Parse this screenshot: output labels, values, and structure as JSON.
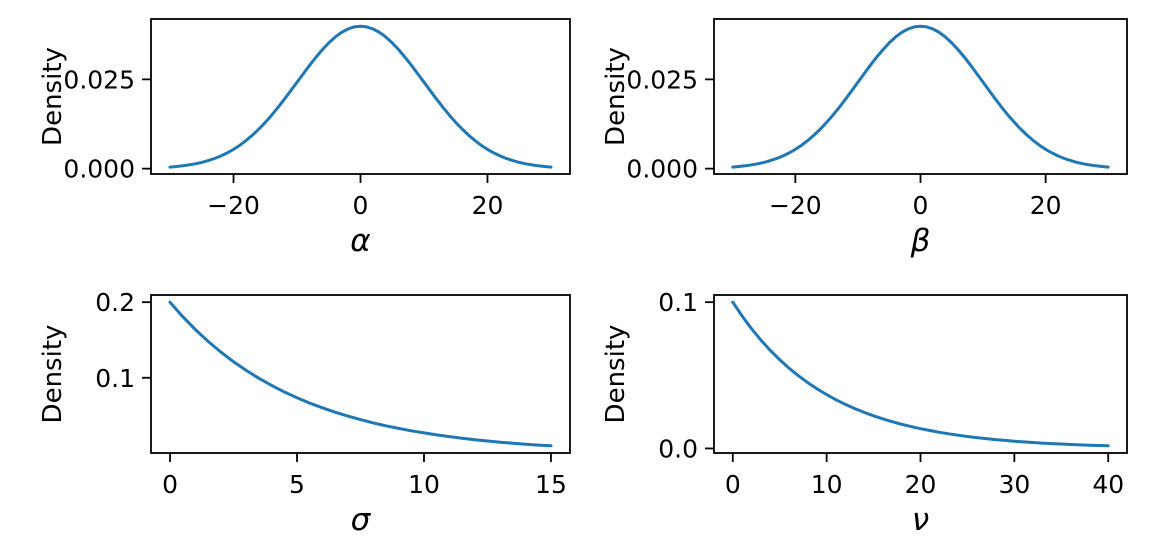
{
  "figure": {
    "background_color": "#ffffff",
    "line_color": "#1f77b4",
    "axis_color": "#000000",
    "text_color": "#000000"
  },
  "chart_data": [
    {
      "id": "alpha",
      "type": "line",
      "title": "",
      "xlabel": "α",
      "xlabel_math": true,
      "ylabel": "Density",
      "xlim": [
        -33,
        33
      ],
      "ylim": [
        -0.0015,
        0.0419
      ],
      "xticks": [
        -20,
        0,
        20
      ],
      "xtick_labels": [
        "−20",
        "0",
        "20"
      ],
      "yticks": [
        0,
        0.025
      ],
      "ytick_labels": [
        "0.000",
        "0.025"
      ],
      "grid": false,
      "legend": false,
      "series": [
        {
          "name": "density",
          "x_start": -30,
          "x_end": 30,
          "y": [
            0.00044,
            0.00059,
            0.00079,
            0.00104,
            0.00136,
            0.00175,
            0.00224,
            0.00283,
            0.00355,
            0.0044,
            0.0054,
            0.00656,
            0.0079,
            0.00941,
            0.01109,
            0.01295,
            0.01497,
            0.01714,
            0.01942,
            0.02179,
            0.0242,
            0.02661,
            0.02897,
            0.03123,
            0.03332,
            0.03521,
            0.03683,
            0.03814,
            0.0391,
            0.03969,
            0.03989,
            0.03969,
            0.0391,
            0.03814,
            0.03683,
            0.03521,
            0.03332,
            0.03123,
            0.02897,
            0.02661,
            0.0242,
            0.02179,
            0.01942,
            0.01714,
            0.01497,
            0.01295,
            0.01109,
            0.00941,
            0.0079,
            0.00656,
            0.0054,
            0.0044,
            0.00355,
            0.00283,
            0.00224,
            0.00175,
            0.00136,
            0.00104,
            0.00079,
            0.00059,
            0.00044
          ]
        }
      ]
    },
    {
      "id": "beta",
      "type": "line",
      "title": "",
      "xlabel": "β",
      "xlabel_math": true,
      "ylabel": "Density",
      "xlim": [
        -33,
        33
      ],
      "ylim": [
        -0.0015,
        0.0419
      ],
      "xticks": [
        -20,
        0,
        20
      ],
      "xtick_labels": [
        "−20",
        "0",
        "20"
      ],
      "yticks": [
        0,
        0.025
      ],
      "ytick_labels": [
        "0.000",
        "0.025"
      ],
      "grid": false,
      "legend": false,
      "series": [
        {
          "name": "density",
          "x_start": -30,
          "x_end": 30,
          "y": [
            0.00044,
            0.00059,
            0.00079,
            0.00104,
            0.00136,
            0.00175,
            0.00224,
            0.00283,
            0.00355,
            0.0044,
            0.0054,
            0.00656,
            0.0079,
            0.00941,
            0.01109,
            0.01295,
            0.01497,
            0.01714,
            0.01942,
            0.02179,
            0.0242,
            0.02661,
            0.02897,
            0.03123,
            0.03332,
            0.03521,
            0.03683,
            0.03814,
            0.0391,
            0.03969,
            0.03989,
            0.03969,
            0.0391,
            0.03814,
            0.03683,
            0.03521,
            0.03332,
            0.03123,
            0.02897,
            0.02661,
            0.0242,
            0.02179,
            0.01942,
            0.01714,
            0.01497,
            0.01295,
            0.01109,
            0.00941,
            0.0079,
            0.00656,
            0.0054,
            0.0044,
            0.00355,
            0.00283,
            0.00224,
            0.00175,
            0.00136,
            0.00104,
            0.00079,
            0.00059,
            0.00044
          ]
        }
      ]
    },
    {
      "id": "sigma",
      "type": "line",
      "title": "",
      "xlabel": "σ",
      "xlabel_math": true,
      "ylabel": "Density",
      "xlim": [
        -0.75,
        15.75
      ],
      "ylim": [
        0.0005,
        0.2095
      ],
      "xticks": [
        0,
        5,
        10,
        15
      ],
      "xtick_labels": [
        "0",
        "5",
        "10",
        "15"
      ],
      "yticks": [
        0.1,
        0.2
      ],
      "ytick_labels": [
        "0.1",
        "0.2"
      ],
      "grid": false,
      "legend": false,
      "series": [
        {
          "name": "density",
          "x_start": 0,
          "x_end": 15,
          "y": [
            0.2,
            0.18097,
            0.16375,
            0.14816,
            0.13406,
            0.12131,
            0.10976,
            0.09932,
            0.08987,
            0.08131,
            0.07358,
            0.06657,
            0.06024,
            0.05451,
            0.04932,
            0.04463,
            0.04038,
            0.03654,
            0.03306,
            0.02991,
            0.02707,
            0.02449,
            0.02216,
            0.02005,
            0.01814,
            0.01642,
            0.01485,
            0.01344,
            0.01216,
            0.011,
            0.00996
          ]
        }
      ]
    },
    {
      "id": "nu",
      "type": "line",
      "title": "",
      "xlabel": "ν",
      "xlabel_math": true,
      "ylabel": "Density",
      "xlim": [
        -2,
        42
      ],
      "ylim": [
        -0.0031,
        0.1049
      ],
      "xticks": [
        0,
        10,
        20,
        30,
        40
      ],
      "xtick_labels": [
        "0",
        "10",
        "20",
        "30",
        "40"
      ],
      "yticks": [
        0,
        0.1
      ],
      "ytick_labels": [
        "0.0",
        "0.1"
      ],
      "grid": false,
      "legend": false,
      "series": [
        {
          "name": "density",
          "x_start": 0,
          "x_end": 40,
          "y": [
            0.1,
            0.09048,
            0.08187,
            0.07408,
            0.06703,
            0.06065,
            0.05488,
            0.04966,
            0.04493,
            0.04066,
            0.03679,
            0.03329,
            0.03012,
            0.02725,
            0.02466,
            0.02231,
            0.02019,
            0.01827,
            0.01653,
            0.01496,
            0.01353,
            0.01225,
            0.01108,
            0.01003,
            0.00907,
            0.00821,
            0.00743,
            0.00672,
            0.00608,
            0.0055,
            0.00498,
            0.0045,
            0.00407,
            0.00369,
            0.00334,
            0.00302,
            0.00273,
            0.00247,
            0.00224,
            0.00202,
            0.00183
          ]
        }
      ]
    }
  ]
}
